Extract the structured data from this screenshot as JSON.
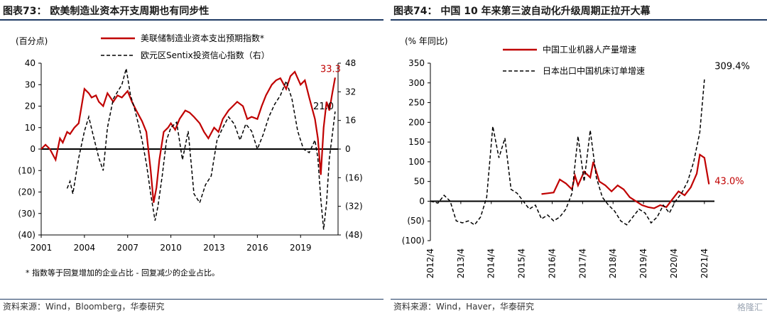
{
  "left": {
    "title": "图表73：   欧美制造业资本开支周期也有同步性",
    "source": "资料来源：Wind，Bloomberg，华泰研究",
    "footnote": "* 指数等于回复增加的企业占比 - 回复减少的企业占比。",
    "chart_data": {
      "type": "line",
      "unit_left": "(百分点)",
      "y_left_ticks": [
        "40",
        "30",
        "20",
        "10",
        "0",
        "(10)",
        "(20)",
        "(30)",
        "(40)"
      ],
      "y_left_values": [
        40,
        30,
        20,
        10,
        0,
        -10,
        -20,
        -30,
        -40
      ],
      "y_right_ticks": [
        "48",
        "32",
        "16",
        "0",
        "(16)",
        "(32)",
        "(48)"
      ],
      "y_right_values": [
        48,
        32,
        16,
        0,
        -16,
        -32,
        -48
      ],
      "x_ticks": [
        "2001",
        "2004",
        "2007",
        "2010",
        "2013",
        "2016",
        "2019"
      ],
      "x_tick_years": [
        2001,
        2004,
        2007,
        2010,
        2013,
        2016,
        2019
      ],
      "xlim": [
        2001,
        2021.6
      ],
      "ylim_left": [
        -40,
        40
      ],
      "ylim_right": [
        -48,
        48
      ],
      "annotations": [
        {
          "text": "33.3",
          "x": 2021.4,
          "y": 33.3,
          "color": "#c00000",
          "axis": "left"
        },
        {
          "text": "21.0",
          "x": 2021.4,
          "y": 21.0,
          "color": "#000000",
          "axis": "right"
        }
      ],
      "series": [
        {
          "name": "美联储制造业资本支出预期指数*",
          "color": "#c00000",
          "style": "solid",
          "axis": "left",
          "x": [
            2001,
            2001.3,
            2001.6,
            2002,
            2002.3,
            2002.5,
            2002.8,
            2003,
            2003.3,
            2003.6,
            2004,
            2004.3,
            2004.5,
            2004.8,
            2005,
            2005.3,
            2005.6,
            2006,
            2006.3,
            2006.6,
            2007,
            2007.3,
            2007.6,
            2008,
            2008.3,
            2008.6,
            2008.8,
            2009,
            2009.2,
            2009.5,
            2009.8,
            2010,
            2010.3,
            2010.6,
            2011,
            2011.3,
            2011.6,
            2012,
            2012.3,
            2012.6,
            2013,
            2013.3,
            2013.6,
            2014,
            2014.3,
            2014.6,
            2015,
            2015.3,
            2015.6,
            2016,
            2016.3,
            2016.6,
            2017,
            2017.3,
            2017.6,
            2018,
            2018.3,
            2018.6,
            2019,
            2019.3,
            2019.6,
            2020,
            2020.2,
            2020.4,
            2020.6,
            2020.8,
            2021,
            2021.2,
            2021.4
          ],
          "y": [
            0,
            2,
            0,
            -5,
            5,
            3,
            8,
            7,
            10,
            12,
            28,
            26,
            24,
            25,
            22,
            20,
            26,
            22,
            25,
            24,
            27,
            22,
            18,
            13,
            8,
            -10,
            -25,
            -18,
            -5,
            8,
            10,
            12,
            9,
            14,
            18,
            17,
            15,
            12,
            8,
            5,
            10,
            8,
            14,
            18,
            20,
            22,
            20,
            14,
            15,
            14,
            20,
            25,
            30,
            32,
            33,
            28,
            34,
            36,
            30,
            32,
            24,
            14,
            5,
            -12,
            10,
            22,
            18,
            26,
            33.3
          ]
        },
        {
          "name": "欧元区Sentix投资信心指数（右）",
          "color": "#000000",
          "style": "dashed",
          "axis": "right",
          "x": [
            2002.8,
            2003,
            2003.2,
            2003.6,
            2004,
            2004.3,
            2004.6,
            2005,
            2005.3,
            2005.6,
            2006,
            2006.3,
            2006.6,
            2006.9,
            2007.2,
            2007.5,
            2007.8,
            2008,
            2008.3,
            2008.6,
            2008.9,
            2009.1,
            2009.4,
            2009.7,
            2010,
            2010.4,
            2010.8,
            2011.2,
            2011.6,
            2012,
            2012.4,
            2012.8,
            2013.2,
            2013.6,
            2014,
            2014.4,
            2014.8,
            2015.2,
            2015.6,
            2016,
            2016.4,
            2016.8,
            2017.2,
            2017.6,
            2018,
            2018.4,
            2018.8,
            2019.2,
            2019.6,
            2020,
            2020.2,
            2020.4,
            2020.6,
            2020.8,
            2021,
            2021.2,
            2021.4
          ],
          "y": [
            -22,
            -18,
            -25,
            -5,
            10,
            18,
            8,
            -5,
            -12,
            12,
            28,
            32,
            36,
            45,
            30,
            22,
            12,
            5,
            -8,
            -25,
            -40,
            -32,
            -15,
            5,
            12,
            15,
            -6,
            10,
            -25,
            -30,
            -20,
            -15,
            5,
            12,
            18,
            14,
            5,
            14,
            10,
            0,
            8,
            18,
            25,
            30,
            38,
            28,
            10,
            0,
            -2,
            5,
            -5,
            -28,
            -45,
            -30,
            -5,
            8,
            21.0
          ]
        }
      ]
    }
  },
  "right": {
    "title": "图表74：   中国 10 年来第三波自动化升级周期正拉开大幕",
    "source": "资料来源：Wind，Haver，华泰研究",
    "watermark": "格隆汇",
    "chart_data": {
      "type": "line",
      "unit_left": "(% 年同比)",
      "y_ticks": [
        "350",
        "300",
        "250",
        "200",
        "150",
        "100",
        "50",
        "0",
        "(50)",
        "(100)"
      ],
      "y_values": [
        350,
        300,
        250,
        200,
        150,
        100,
        50,
        0,
        -50,
        -100
      ],
      "x_ticks": [
        "2012/4",
        "2013/4",
        "2014/4",
        "2015/4",
        "2016/4",
        "2017/4",
        "2018/4",
        "2019/4",
        "2020/4",
        "2021/4"
      ],
      "x_tick_values": [
        2012.25,
        2013.25,
        2014.25,
        2015.25,
        2016.25,
        2017.25,
        2018.25,
        2019.25,
        2020.25,
        2021.25
      ],
      "xlim": [
        2012.25,
        2021.58
      ],
      "ylim": [
        -100,
        350
      ],
      "annotations": [
        {
          "text": "309.4%",
          "x": 2021.4,
          "y": 309.4,
          "color": "#000000"
        },
        {
          "text": "43.0%",
          "x": 2021.4,
          "y": 43.0,
          "color": "#c00000"
        }
      ],
      "series": [
        {
          "name": "中国工业机器人产量增速",
          "color": "#c00000",
          "style": "solid",
          "x": [
            2015.9,
            2016.1,
            2016.3,
            2016.5,
            2016.7,
            2016.9,
            2017,
            2017.1,
            2017.3,
            2017.5,
            2017.6,
            2017.8,
            2018,
            2018.2,
            2018.4,
            2018.6,
            2018.8,
            2019,
            2019.2,
            2019.4,
            2019.6,
            2019.8,
            2020,
            2020.2,
            2020.4,
            2020.6,
            2020.8,
            2021,
            2021.1,
            2021.25,
            2021.4
          ],
          "y": [
            18,
            20,
            22,
            55,
            45,
            30,
            65,
            40,
            75,
            60,
            100,
            50,
            40,
            25,
            40,
            30,
            10,
            0,
            -10,
            -15,
            -18,
            -10,
            -15,
            5,
            25,
            15,
            35,
            70,
            118,
            110,
            43.0
          ]
        },
        {
          "name": "日本出口中国机床订单增速",
          "color": "#000000",
          "style": "dashed",
          "x": [
            2012.25,
            2012.5,
            2012.7,
            2012.9,
            2013.1,
            2013.3,
            2013.5,
            2013.7,
            2013.9,
            2014.1,
            2014.3,
            2014.5,
            2014.7,
            2014.9,
            2015.1,
            2015.3,
            2015.5,
            2015.7,
            2015.9,
            2016.1,
            2016.3,
            2016.5,
            2016.7,
            2016.9,
            2017.1,
            2017.3,
            2017.5,
            2017.7,
            2017.9,
            2018.1,
            2018.3,
            2018.5,
            2018.7,
            2018.9,
            2019.1,
            2019.3,
            2019.5,
            2019.7,
            2019.9,
            2020.1,
            2020.3,
            2020.5,
            2020.7,
            2020.9,
            2021.1,
            2021.25
          ],
          "y": [
            0,
            -5,
            15,
            0,
            -50,
            -55,
            -50,
            -60,
            -40,
            10,
            190,
            110,
            160,
            30,
            20,
            0,
            -20,
            -10,
            -45,
            -35,
            -50,
            -40,
            -20,
            20,
            165,
            50,
            180,
            60,
            10,
            -10,
            -25,
            -50,
            -60,
            -40,
            -20,
            -30,
            -55,
            -40,
            -10,
            -30,
            0,
            20,
            50,
            100,
            175,
            309.4
          ]
        }
      ]
    }
  }
}
